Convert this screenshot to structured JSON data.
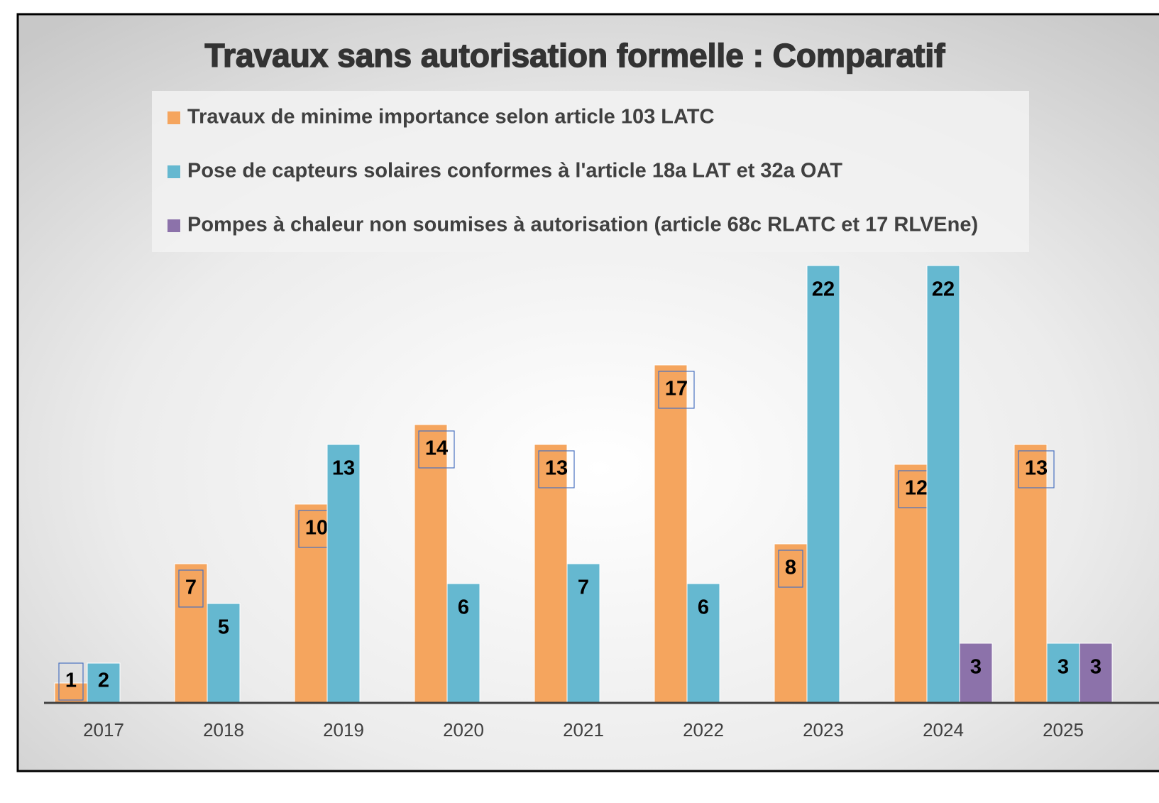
{
  "chart_data": {
    "type": "bar",
    "title": "Travaux sans autorisation formelle : Comparatif",
    "categories": [
      "2017",
      "2018",
      "2019",
      "2020",
      "2021",
      "2022",
      "2023",
      "2024",
      "2025"
    ],
    "series": [
      {
        "name": "Travaux de minime importance selon article 103 LATC",
        "color": "#f5a55e",
        "values": [
          1,
          7,
          10,
          14,
          13,
          17,
          8,
          12,
          13
        ]
      },
      {
        "name": "Pose de capteurs solaires conformes à l'article 18a LAT et 32a OAT",
        "color": "#65b8d0",
        "values": [
          2,
          5,
          13,
          6,
          7,
          6,
          22,
          22,
          3
        ]
      },
      {
        "name": "Pompes à chaleur non soumises à autorisation (article 68c RLATC et 17 RLVEne)",
        "color": "#8c72aa",
        "values": [
          null,
          null,
          null,
          null,
          null,
          null,
          null,
          3,
          3
        ]
      }
    ],
    "legend": "top"
  }
}
